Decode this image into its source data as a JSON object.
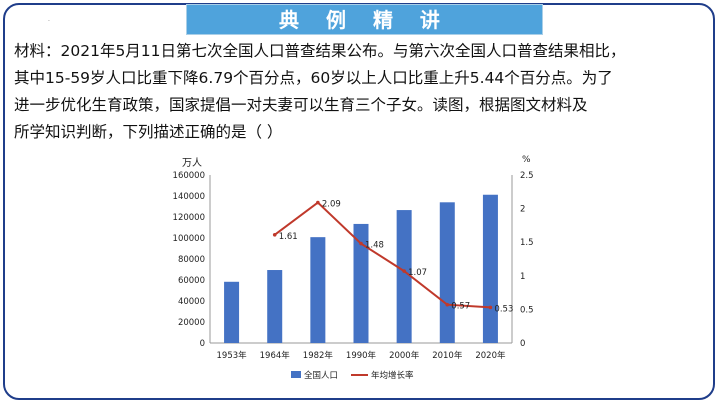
{
  "slide": {
    "title": "典 例 精 讲",
    "dot": "·",
    "question_lines": [
      "材料：2021年5月11日第七次全国人口普查结果公布。与第六次全国人口普查结果相比，",
      "其中15-59岁人口比重下降6.79个百分点，60岁以上人口比重上升5.44个百分点。为了",
      "进一步优化生育政策，国家提倡一对夫妻可以生育三个子女。读图，根据图文材料及",
      "所学知识判断，下列描述正确的是（    ）"
    ]
  },
  "chart_data": {
    "type": "bar",
    "categories": [
      "1953年",
      "1964年",
      "1982年",
      "1990年",
      "2000年",
      "2010年",
      "2020年"
    ],
    "left_axis": {
      "unit": "万人",
      "ylim": [
        0,
        160000
      ],
      "ticks": [
        0,
        20000,
        40000,
        60000,
        80000,
        100000,
        120000,
        140000,
        160000
      ]
    },
    "right_axis": {
      "unit": "%",
      "ylim": [
        0,
        2.5
      ],
      "ticks": [
        "0",
        "0.5",
        "1",
        "1.5",
        "2",
        "2.5"
      ]
    },
    "series": [
      {
        "name": "全国人口",
        "kind": "bar",
        "color": "#4472c4",
        "values": [
          58300,
          69500,
          100800,
          113400,
          126600,
          134000,
          141200
        ]
      },
      {
        "name": "年均增长率",
        "kind": "line",
        "color": "#c0392b",
        "values": [
          null,
          1.61,
          2.09,
          1.48,
          1.07,
          0.57,
          0.53
        ],
        "labels": [
          null,
          "1.61",
          "2.09",
          "1.48",
          "1.07",
          "0.57",
          "0.53"
        ]
      }
    ]
  }
}
